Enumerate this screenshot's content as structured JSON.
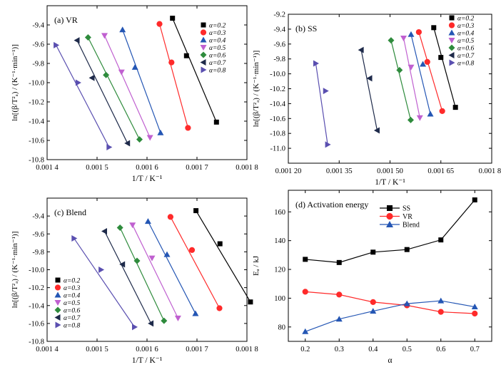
{
  "chart_data": [
    {
      "type": "scatter",
      "panel_label": "(a) VR",
      "xlabel": "1/T / K⁻¹",
      "ylabel": "ln[(β/T²ₐ) / (K⁻¹·min⁻¹)]",
      "xlim": [
        0.0014,
        0.0018
      ],
      "ylim": [
        -10.8,
        -9.2
      ],
      "x_ticks": [
        0.0014,
        0.0015,
        0.0016,
        0.0017,
        0.0018
      ],
      "x_tick_labels": [
        "0.001 4",
        "0.001 5",
        "0.001 6",
        "0.001 7",
        "0.001 8"
      ],
      "y_ticks": [
        -9.4,
        -9.6,
        -9.8,
        -10.0,
        -10.2,
        -10.4,
        -10.6,
        -10.8
      ],
      "y_tick_labels": [
        "-9.4",
        "-9.6",
        "-9.8",
        "-10.0",
        "-10.2",
        "-10.4",
        "-10.6",
        "-10.8"
      ],
      "legend_position": "top-right",
      "series": [
        {
          "name": "α=0.2",
          "x": [
            0.001651,
            0.001679,
            0.001739
          ],
          "y": [
            -9.33,
            -9.72,
            -10.41
          ]
        },
        {
          "name": "α=0.3",
          "x": [
            0.001625,
            0.001649,
            0.001682
          ],
          "y": [
            -9.39,
            -9.79,
            -10.47
          ]
        },
        {
          "name": "α=0.4",
          "x": [
            0.001551,
            0.001576,
            0.001627
          ],
          "y": [
            -9.45,
            -9.84,
            -10.52
          ]
        },
        {
          "name": "α=0.5",
          "x": [
            0.001515,
            0.001549,
            0.001606
          ],
          "y": [
            -9.51,
            -9.89,
            -10.57
          ]
        },
        {
          "name": "α=0.6",
          "x": [
            0.001482,
            0.001518,
            0.001585
          ],
          "y": [
            -9.53,
            -9.92,
            -10.59
          ]
        },
        {
          "name": "α=0.7",
          "x": [
            0.00146,
            0.00149,
            0.001561
          ],
          "y": [
            -9.56,
            -9.95,
            -10.63
          ]
        },
        {
          "name": "α=0.8",
          "x": [
            0.001418,
            0.001462,
            0.001524
          ],
          "y": [
            -9.61,
            -10.0,
            -10.67
          ]
        }
      ]
    },
    {
      "type": "scatter",
      "panel_label": "(b) SS",
      "xlabel": "1/T / K⁻¹",
      "ylabel": "ln[(β/T²ₐ) / (K⁻¹·min⁻¹)]",
      "xlim": [
        0.0012,
        0.0018
      ],
      "ylim": [
        -11.2,
        -9.2
      ],
      "x_ticks": [
        0.0012,
        0.00135,
        0.0015,
        0.00165,
        0.0018
      ],
      "x_tick_labels": [
        "0.001 20",
        "0.001 35",
        "0.001 50",
        "0.001 65",
        "0.001 80"
      ],
      "y_ticks": [
        -9.2,
        -9.4,
        -9.6,
        -9.8,
        -10.0,
        -10.2,
        -10.4,
        -10.6,
        -10.8,
        -11.0
      ],
      "y_tick_labels": [
        "-9.2",
        "-9.4",
        "-9.6",
        "-9.8",
        "-10.0",
        "-10.2",
        "-10.4",
        "-10.6",
        "-10.8",
        "-11.0"
      ],
      "legend_position": "top-right",
      "series": [
        {
          "name": "α=0.2",
          "x": [
            0.001629,
            0.00165,
            0.001693
          ],
          "y": [
            -9.38,
            -9.78,
            -10.45
          ]
        },
        {
          "name": "α=0.3",
          "x": [
            0.001585,
            0.00161,
            0.001654
          ],
          "y": [
            -9.44,
            -9.84,
            -10.5
          ]
        },
        {
          "name": "α=0.4",
          "x": [
            0.001562,
            0.001597,
            0.001619
          ],
          "y": [
            -9.47,
            -9.87,
            -10.54
          ]
        },
        {
          "name": "α=0.5",
          "x": [
            0.00154,
            0.001562,
            0.001588
          ],
          "y": [
            -9.52,
            -9.91,
            -10.59
          ]
        },
        {
          "name": "α=0.6",
          "x": [
            0.001503,
            0.001528,
            0.001561
          ],
          "y": [
            -9.55,
            -9.95,
            -10.62
          ]
        },
        {
          "name": "α=0.7",
          "x": [
            0.001415,
            0.00144,
            0.001462
          ],
          "y": [
            -9.68,
            -10.06,
            -10.76
          ]
        },
        {
          "name": "α=0.8",
          "x": [
            0.001281,
            0.00131,
            0.001316
          ],
          "y": [
            -9.86,
            -10.23,
            -10.95
          ]
        }
      ]
    },
    {
      "type": "scatter",
      "panel_label": "(c) Blend",
      "xlabel": "1/T / K⁻¹",
      "ylabel": "ln[(β/T²ₐ) / (K⁻¹·min⁻¹)]",
      "xlim": [
        0.0014,
        0.0018
      ],
      "ylim": [
        -10.8,
        -9.2
      ],
      "x_ticks": [
        0.0014,
        0.0015,
        0.0016,
        0.0017,
        0.0018
      ],
      "x_tick_labels": [
        "0.001 4",
        "0.001 5",
        "0.001 6",
        "0.001 7",
        "0.001 8"
      ],
      "y_ticks": [
        -9.4,
        -9.6,
        -9.8,
        -10.0,
        -10.2,
        -10.4,
        -10.6,
        -10.8
      ],
      "y_tick_labels": [
        "-9.4",
        "-9.6",
        "-9.8",
        "-10.0",
        "-10.2",
        "-10.4",
        "-10.6",
        "-10.8"
      ],
      "legend_position": "bottom-left",
      "series": [
        {
          "name": "α=0.2",
          "x": [
            0.001698,
            0.001746,
            0.001807
          ],
          "y": [
            -9.34,
            -9.71,
            -10.36
          ]
        },
        {
          "name": "α=0.3",
          "x": [
            0.001647,
            0.00169,
            0.001745
          ],
          "y": [
            -9.41,
            -9.78,
            -10.43
          ]
        },
        {
          "name": "α=0.4",
          "x": [
            0.001602,
            0.00164,
            0.001697
          ],
          "y": [
            -9.46,
            -9.83,
            -10.49
          ]
        },
        {
          "name": "α=0.5",
          "x": [
            0.001571,
            0.00161,
            0.001662
          ],
          "y": [
            -9.5,
            -9.87,
            -10.54
          ]
        },
        {
          "name": "α=0.6",
          "x": [
            0.001546,
            0.00158,
            0.001634
          ],
          "y": [
            -9.53,
            -9.9,
            -10.57
          ]
        },
        {
          "name": "α=0.7",
          "x": [
            0.001515,
            0.001551,
            0.001608
          ],
          "y": [
            -9.57,
            -9.94,
            -10.6
          ]
        },
        {
          "name": "α=0.8",
          "x": [
            0.001454,
            0.001508,
            0.001575
          ],
          "y": [
            -9.65,
            -10.0,
            -10.64
          ]
        }
      ]
    },
    {
      "type": "line",
      "panel_label": "(d) Activation energy",
      "xlabel": "α",
      "ylabel": "Eₐ / kJ",
      "xlim": [
        0.15,
        0.75
      ],
      "ylim": [
        70,
        175
      ],
      "x_ticks": [
        0.2,
        0.3,
        0.4,
        0.5,
        0.6,
        0.7
      ],
      "x_tick_labels": [
        "0.2",
        "0.3",
        "0.4",
        "0.5",
        "0.6",
        "0.7"
      ],
      "y_ticks": [
        80,
        100,
        120,
        140,
        160
      ],
      "y_tick_labels": [
        "80",
        "100",
        "120",
        "140",
        "160"
      ],
      "legend_position": "top-center",
      "series": [
        {
          "name": "SS",
          "x": [
            0.2,
            0.3,
            0.4,
            0.5,
            0.6,
            0.7
          ],
          "y": [
            127.0,
            124.8,
            132.0,
            133.8,
            140.5,
            168.3
          ]
        },
        {
          "name": "VR",
          "x": [
            0.2,
            0.3,
            0.4,
            0.5,
            0.6,
            0.7
          ],
          "y": [
            104.5,
            102.5,
            97.3,
            95.0,
            90.5,
            89.3
          ]
        },
        {
          "name": "Blend",
          "x": [
            0.2,
            0.3,
            0.4,
            0.5,
            0.6,
            0.7
          ],
          "y": [
            76.8,
            85.5,
            91.0,
            96.2,
            98.2,
            94.0
          ]
        }
      ]
    }
  ],
  "colors": {
    "a02": "#000000",
    "a03": "#ff2a2a",
    "a04": "#2456b4",
    "a05": "#c060d0",
    "a06": "#2e8b3c",
    "a07": "#1e2a4a",
    "a08": "#5a4fb0",
    "ss": "#000000",
    "vr": "#ff2a2a",
    "blend": "#2456b4"
  }
}
